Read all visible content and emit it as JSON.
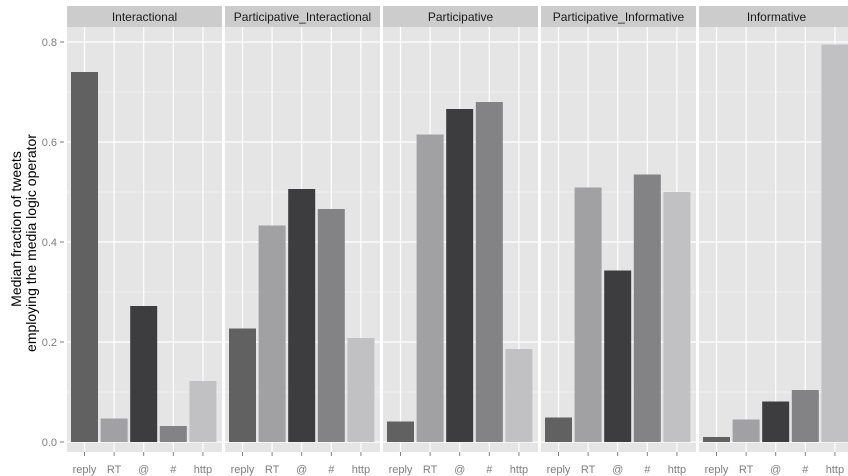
{
  "chart_data": {
    "type": "bar",
    "facets": [
      "Interactional",
      "Participative_Interactional",
      "Participative",
      "Participative_Informative",
      "Informative"
    ],
    "categories": [
      "reply",
      "RT",
      "@",
      "#",
      "http"
    ],
    "values": [
      [
        0.74,
        0.047,
        0.272,
        0.032,
        0.122
      ],
      [
        0.227,
        0.433,
        0.506,
        0.466,
        0.208
      ],
      [
        0.041,
        0.615,
        0.666,
        0.68,
        0.186
      ],
      [
        0.049,
        0.509,
        0.343,
        0.535,
        0.5
      ],
      [
        0.01,
        0.045,
        0.081,
        0.104,
        0.795
      ]
    ],
    "ylabel_lines": [
      "Median fraction of tweets",
      "employing the media logic operator"
    ],
    "xlabel": "",
    "ylim": [
      -0.02,
      0.83
    ],
    "yticks": [
      "0.0",
      "0.2",
      "0.4",
      "0.6",
      "0.8"
    ],
    "ytick_values": [
      0.0,
      0.2,
      0.4,
      0.6,
      0.8
    ],
    "grid": true,
    "colors": {
      "panel_bg": "#e5e5e5",
      "strip_bg": "#cccccc",
      "grid_major": "#ffffff",
      "grid_minor": "#f2f2f2",
      "bars": [
        "#616161",
        "#a1a1a3",
        "#3d3d3f",
        "#838385",
        "#c1c1c3"
      ]
    }
  }
}
